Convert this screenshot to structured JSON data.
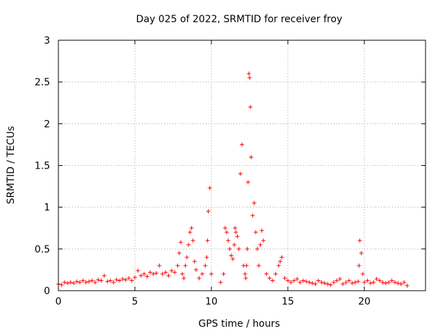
{
  "chart_data": {
    "type": "scatter",
    "title": "Day 025 of 2022, SRMTID for receiver froy",
    "xlabel": "GPS time / hours",
    "ylabel": "SRMTID / TECUs",
    "xlim": [
      0,
      24
    ],
    "ylim": [
      0,
      3
    ],
    "xticks": [
      0,
      5,
      10,
      15,
      20
    ],
    "yticks": [
      0,
      0.5,
      1,
      1.5,
      2,
      2.5,
      3
    ],
    "xtick_labels": [
      "0",
      "5",
      "10",
      "15",
      "20"
    ],
    "ytick_labels": [
      "0",
      "0.5",
      "1",
      "1.5",
      "2",
      "2.5",
      "3"
    ],
    "grid": true,
    "marker": "+",
    "color": "#ff0000",
    "series": [
      {
        "name": "SRMTID",
        "x": [
          0.0,
          0.2,
          0.4,
          0.6,
          0.8,
          1.0,
          1.2,
          1.4,
          1.6,
          1.8,
          2.0,
          2.2,
          2.4,
          2.6,
          2.8,
          3.0,
          3.2,
          3.4,
          3.6,
          3.8,
          4.0,
          4.2,
          4.4,
          4.6,
          4.8,
          5.0,
          5.2,
          5.4,
          5.6,
          5.8,
          6.0,
          6.2,
          6.4,
          6.6,
          6.8,
          7.0,
          7.2,
          7.4,
          7.6,
          7.8,
          7.9,
          8.0,
          8.1,
          8.2,
          8.3,
          8.4,
          8.5,
          8.6,
          8.7,
          8.8,
          8.9,
          9.0,
          9.2,
          9.4,
          9.6,
          9.7,
          9.75,
          9.8,
          9.9,
          10.0,
          10.6,
          10.8,
          10.9,
          11.0,
          11.1,
          11.2,
          11.3,
          11.4,
          11.5,
          11.55,
          11.6,
          11.7,
          11.8,
          11.9,
          12.0,
          12.1,
          12.2,
          12.25,
          12.3,
          12.35,
          12.4,
          12.45,
          12.5,
          12.55,
          12.6,
          12.7,
          12.8,
          12.9,
          13.0,
          13.1,
          13.2,
          13.3,
          13.4,
          13.6,
          13.8,
          14.0,
          14.2,
          14.4,
          14.5,
          14.6,
          14.8,
          15.0,
          15.2,
          15.4,
          15.6,
          15.8,
          16.0,
          16.2,
          16.4,
          16.6,
          16.8,
          17.0,
          17.2,
          17.4,
          17.6,
          17.8,
          18.0,
          18.2,
          18.4,
          18.6,
          18.8,
          19.0,
          19.2,
          19.4,
          19.6,
          19.65,
          19.7,
          19.8,
          19.9,
          20.0,
          20.2,
          20.4,
          20.6,
          20.8,
          21.0,
          21.2,
          21.4,
          21.6,
          21.8,
          22.0,
          22.2,
          22.4,
          22.6,
          22.8
        ],
        "y": [
          0.08,
          0.07,
          0.1,
          0.09,
          0.1,
          0.09,
          0.11,
          0.1,
          0.12,
          0.1,
          0.11,
          0.12,
          0.1,
          0.13,
          0.12,
          0.18,
          0.11,
          0.12,
          0.1,
          0.13,
          0.12,
          0.14,
          0.13,
          0.15,
          0.12,
          0.16,
          0.24,
          0.18,
          0.2,
          0.17,
          0.22,
          0.2,
          0.21,
          0.3,
          0.2,
          0.22,
          0.18,
          0.24,
          0.22,
          0.3,
          0.45,
          0.58,
          0.2,
          0.15,
          0.3,
          0.4,
          0.55,
          0.7,
          0.75,
          0.6,
          0.35,
          0.25,
          0.15,
          0.2,
          0.3,
          0.4,
          0.6,
          0.95,
          1.23,
          0.2,
          0.1,
          0.2,
          0.75,
          0.7,
          0.6,
          0.5,
          0.42,
          0.38,
          0.55,
          0.75,
          0.7,
          0.65,
          0.5,
          1.4,
          1.75,
          0.3,
          0.2,
          0.15,
          0.3,
          0.5,
          1.3,
          2.6,
          2.55,
          2.2,
          1.6,
          0.9,
          1.05,
          0.7,
          0.5,
          0.3,
          0.55,
          0.72,
          0.6,
          0.2,
          0.15,
          0.12,
          0.2,
          0.3,
          0.35,
          0.4,
          0.15,
          0.12,
          0.1,
          0.12,
          0.14,
          0.1,
          0.12,
          0.11,
          0.1,
          0.09,
          0.08,
          0.12,
          0.1,
          0.09,
          0.08,
          0.07,
          0.1,
          0.12,
          0.14,
          0.08,
          0.1,
          0.12,
          0.09,
          0.1,
          0.11,
          0.3,
          0.6,
          0.45,
          0.2,
          0.1,
          0.12,
          0.09,
          0.1,
          0.14,
          0.12,
          0.1,
          0.09,
          0.1,
          0.12,
          0.1,
          0.09,
          0.08,
          0.1,
          0.06
        ]
      }
    ]
  }
}
